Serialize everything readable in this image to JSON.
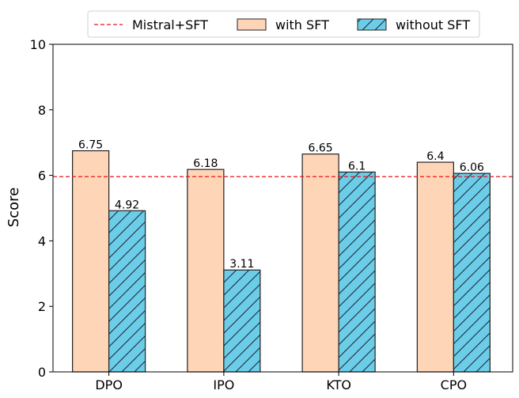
{
  "chart_data": {
    "type": "bar",
    "title": "",
    "xlabel": "",
    "ylabel": "Score",
    "ylim": [
      0,
      10
    ],
    "yticks": [
      0,
      2,
      4,
      6,
      8,
      10
    ],
    "grid": false,
    "legend_position": "top-center",
    "categories": [
      "DPO",
      "IPO",
      "KTO",
      "CPO"
    ],
    "series": [
      {
        "name": "with SFT",
        "values": [
          6.75,
          6.18,
          6.65,
          6.4
        ],
        "labels": [
          "6.75",
          "6.18",
          "6.65",
          "6.4"
        ],
        "color": "#ffd5b8",
        "hatch": "none"
      },
      {
        "name": "without SFT",
        "values": [
          4.92,
          3.11,
          6.1,
          6.06
        ],
        "labels": [
          "4.92",
          "3.11",
          "6.1",
          "6.06"
        ],
        "color": "#6ccde8",
        "hatch": "diagonal"
      }
    ],
    "reference_line": {
      "name": "Mistral+SFT",
      "value": 5.96,
      "color": "#e8141c",
      "style": "dashed"
    }
  }
}
